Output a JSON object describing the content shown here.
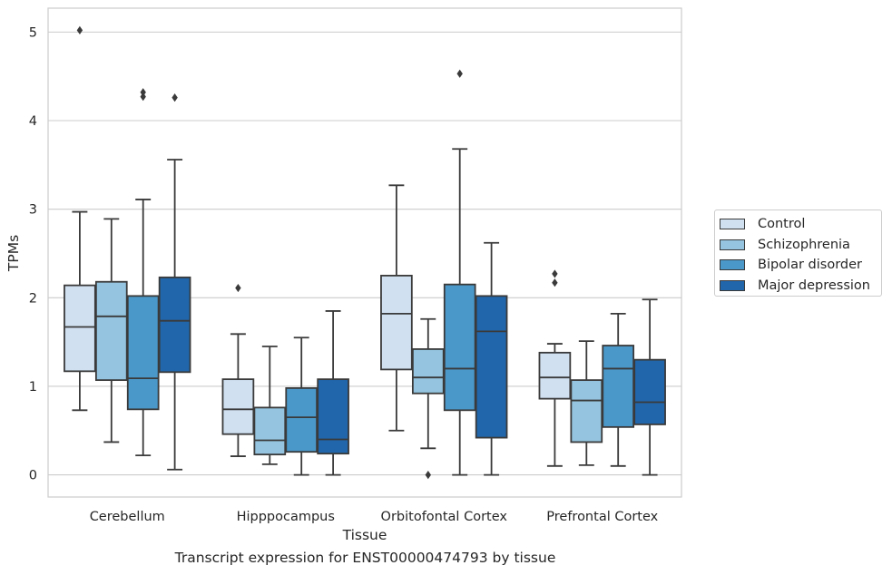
{
  "caption": "Transcript expression for ENST00000474793 by tissue",
  "colors": {
    "Control": "#d0e0f1",
    "Schizophrenia": "#94c4df",
    "Bipolar disorder": "#4a98c9",
    "Major depression": "#2166ab"
  },
  "chart_data": {
    "type": "box",
    "xlabel": "Tissue",
    "ylabel": "TPMs",
    "ylim": [
      -0.25,
      5.27
    ],
    "yticks": [
      0,
      1,
      2,
      3,
      4,
      5
    ],
    "grid": "horizontal",
    "legend_position": "right",
    "categories": [
      "Cerebellum",
      "Hipppocampus",
      "Orbitofontal Cortex",
      "Prefrontal Cortex"
    ],
    "series": [
      {
        "name": "Control",
        "boxes": [
          {
            "whisker_low": 0.73,
            "q1": 1.17,
            "median": 1.67,
            "q3": 2.14,
            "whisker_high": 2.97,
            "outliers": [
              5.02
            ]
          },
          {
            "whisker_low": 0.21,
            "q1": 0.46,
            "median": 0.74,
            "q3": 1.08,
            "whisker_high": 1.59,
            "outliers": [
              2.11
            ]
          },
          {
            "whisker_low": 0.5,
            "q1": 1.19,
            "median": 1.82,
            "q3": 2.25,
            "whisker_high": 3.27,
            "outliers": []
          },
          {
            "whisker_low": 0.1,
            "q1": 0.86,
            "median": 1.1,
            "q3": 1.38,
            "whisker_high": 1.48,
            "outliers": [
              2.17,
              2.27
            ]
          }
        ]
      },
      {
        "name": "Schizophrenia",
        "boxes": [
          {
            "whisker_low": 0.37,
            "q1": 1.07,
            "median": 1.79,
            "q3": 2.18,
            "whisker_high": 2.89,
            "outliers": []
          },
          {
            "whisker_low": 0.12,
            "q1": 0.23,
            "median": 0.39,
            "q3": 0.76,
            "whisker_high": 1.45,
            "outliers": []
          },
          {
            "whisker_low": 0.3,
            "q1": 0.92,
            "median": 1.1,
            "q3": 1.42,
            "whisker_high": 1.76,
            "outliers": [
              0.0
            ]
          },
          {
            "whisker_low": 0.11,
            "q1": 0.37,
            "median": 0.84,
            "q3": 1.07,
            "whisker_high": 1.51,
            "outliers": []
          }
        ]
      },
      {
        "name": "Bipolar disorder",
        "boxes": [
          {
            "whisker_low": 0.22,
            "q1": 0.74,
            "median": 1.09,
            "q3": 2.02,
            "whisker_high": 3.11,
            "outliers": [
              4.27,
              4.32
            ]
          },
          {
            "whisker_low": 0.0,
            "q1": 0.26,
            "median": 0.65,
            "q3": 0.98,
            "whisker_high": 1.55,
            "outliers": []
          },
          {
            "whisker_low": 0.0,
            "q1": 0.73,
            "median": 1.2,
            "q3": 2.15,
            "whisker_high": 3.68,
            "outliers": [
              4.53
            ]
          },
          {
            "whisker_low": 0.1,
            "q1": 0.54,
            "median": 1.2,
            "q3": 1.46,
            "whisker_high": 1.82,
            "outliers": []
          }
        ]
      },
      {
        "name": "Major depression",
        "boxes": [
          {
            "whisker_low": 0.06,
            "q1": 1.16,
            "median": 1.74,
            "q3": 2.23,
            "whisker_high": 3.56,
            "outliers": [
              4.26
            ]
          },
          {
            "whisker_low": 0.0,
            "q1": 0.24,
            "median": 0.4,
            "q3": 1.08,
            "whisker_high": 1.85,
            "outliers": []
          },
          {
            "whisker_low": 0.0,
            "q1": 0.42,
            "median": 1.62,
            "q3": 2.02,
            "whisker_high": 2.62,
            "outliers": []
          },
          {
            "whisker_low": 0.0,
            "q1": 0.57,
            "median": 0.82,
            "q3": 1.3,
            "whisker_high": 1.98,
            "outliers": []
          }
        ]
      }
    ]
  }
}
